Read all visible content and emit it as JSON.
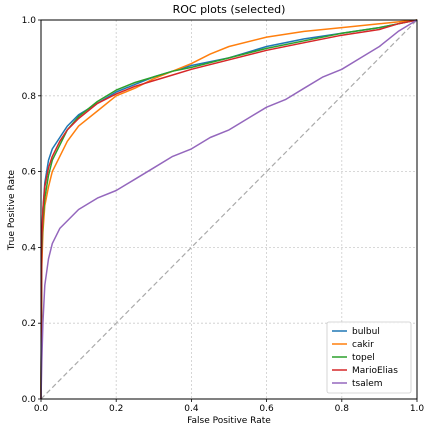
{
  "chart_data": {
    "type": "line",
    "title": "ROC plots (selected)",
    "xlabel": "False Positive Rate",
    "ylabel": "True Positive Rate",
    "xlim": [
      0.0,
      1.0
    ],
    "ylim": [
      0.0,
      1.0
    ],
    "xticks": [
      "0.0",
      "0.2",
      "0.4",
      "0.6",
      "0.8",
      "1.0"
    ],
    "yticks": [
      "0.0",
      "0.2",
      "0.4",
      "0.6",
      "0.8",
      "1.0"
    ],
    "grid": true,
    "legend_position": "lower-right",
    "diagonal": {
      "x": [
        0,
        1
      ],
      "y": [
        0,
        1
      ],
      "color": "#aaaaaa",
      "style": "dashed"
    },
    "series": [
      {
        "name": "bulbul",
        "color": "#1f77b4",
        "x": [
          0,
          0.002,
          0.005,
          0.01,
          0.02,
          0.03,
          0.05,
          0.07,
          0.1,
          0.15,
          0.2,
          0.25,
          0.3,
          0.35,
          0.4,
          0.5,
          0.6,
          0.7,
          0.8,
          0.9,
          0.95,
          1.0
        ],
        "y": [
          0,
          0.4,
          0.5,
          0.57,
          0.63,
          0.66,
          0.69,
          0.72,
          0.75,
          0.78,
          0.81,
          0.83,
          0.85,
          0.865,
          0.88,
          0.9,
          0.93,
          0.95,
          0.965,
          0.98,
          0.99,
          1.0
        ]
      },
      {
        "name": "cakir",
        "color": "#ff7f0e",
        "x": [
          0,
          0.002,
          0.005,
          0.01,
          0.02,
          0.03,
          0.05,
          0.07,
          0.1,
          0.15,
          0.2,
          0.25,
          0.3,
          0.35,
          0.4,
          0.45,
          0.5,
          0.6,
          0.7,
          0.8,
          0.9,
          0.95,
          1.0
        ],
        "y": [
          0,
          0.35,
          0.44,
          0.51,
          0.56,
          0.6,
          0.64,
          0.68,
          0.72,
          0.76,
          0.8,
          0.82,
          0.845,
          0.865,
          0.885,
          0.91,
          0.93,
          0.955,
          0.97,
          0.98,
          0.99,
          0.995,
          1.0
        ]
      },
      {
        "name": "topel",
        "color": "#2ca02c",
        "x": [
          0,
          0.002,
          0.005,
          0.01,
          0.02,
          0.03,
          0.05,
          0.07,
          0.1,
          0.15,
          0.2,
          0.25,
          0.3,
          0.35,
          0.4,
          0.5,
          0.6,
          0.7,
          0.8,
          0.9,
          0.95,
          1.0
        ],
        "y": [
          0,
          0.38,
          0.47,
          0.53,
          0.59,
          0.63,
          0.67,
          0.71,
          0.745,
          0.785,
          0.815,
          0.835,
          0.85,
          0.865,
          0.875,
          0.9,
          0.925,
          0.945,
          0.965,
          0.98,
          0.99,
          1.0
        ]
      },
      {
        "name": "MarioElias",
        "color": "#d62728",
        "x": [
          0,
          0.002,
          0.005,
          0.01,
          0.02,
          0.03,
          0.05,
          0.07,
          0.1,
          0.15,
          0.2,
          0.25,
          0.3,
          0.35,
          0.4,
          0.5,
          0.6,
          0.7,
          0.8,
          0.9,
          0.95,
          1.0
        ],
        "y": [
          0,
          0.42,
          0.5,
          0.56,
          0.61,
          0.64,
          0.68,
          0.71,
          0.74,
          0.78,
          0.805,
          0.825,
          0.84,
          0.855,
          0.87,
          0.895,
          0.92,
          0.94,
          0.96,
          0.975,
          0.99,
          1.0
        ]
      },
      {
        "name": "tsalem",
        "color": "#9467bd",
        "x": [
          0,
          0.002,
          0.005,
          0.01,
          0.02,
          0.03,
          0.05,
          0.07,
          0.1,
          0.15,
          0.2,
          0.25,
          0.3,
          0.35,
          0.4,
          0.45,
          0.5,
          0.55,
          0.6,
          0.65,
          0.7,
          0.75,
          0.8,
          0.85,
          0.9,
          0.95,
          1.0
        ],
        "y": [
          0,
          0.1,
          0.2,
          0.3,
          0.37,
          0.41,
          0.45,
          0.47,
          0.5,
          0.53,
          0.55,
          0.58,
          0.61,
          0.64,
          0.66,
          0.69,
          0.71,
          0.74,
          0.77,
          0.79,
          0.82,
          0.85,
          0.87,
          0.9,
          0.93,
          0.97,
          1.0
        ]
      }
    ]
  }
}
